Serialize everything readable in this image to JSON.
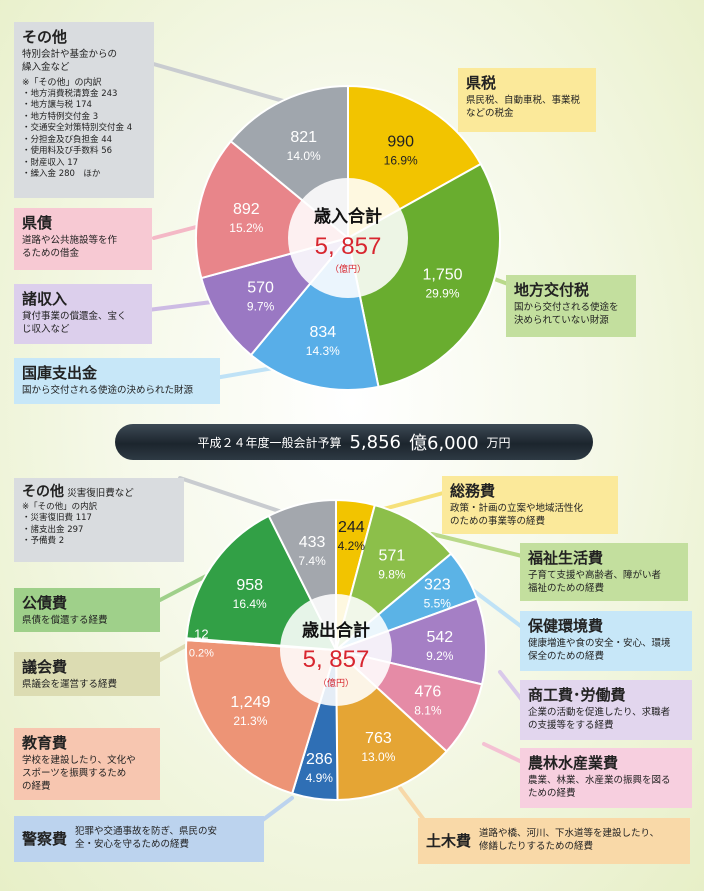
{
  "banner": {
    "prefix": "平成２４年度一般会計予算",
    "amount": "5,856",
    "unit1": "億6,000",
    "unit2": "万円"
  },
  "chart_data": [
    {
      "type": "pie",
      "title": "歳入合計",
      "total": "5, 857",
      "unit": "（億円）",
      "slices": [
        {
          "key": "kenzei",
          "value": 990,
          "value_label": "990",
          "pct": "16.9%",
          "color": "#f2c400"
        },
        {
          "key": "chihou_koufuzei",
          "value": 1750,
          "value_label": "1,750",
          "pct": "29.9%",
          "color": "#69ad2f"
        },
        {
          "key": "kokko",
          "value": 834,
          "value_label": "834",
          "pct": "14.3%",
          "color": "#58aee8"
        },
        {
          "key": "shoshunyu",
          "value": 570,
          "value_label": "570",
          "pct": "9.7%",
          "color": "#9a78c3"
        },
        {
          "key": "kensai",
          "value": 892,
          "value_label": "892",
          "pct": "15.2%",
          "color": "#e8858a"
        },
        {
          "key": "sonota",
          "value": 821,
          "value_label": "821",
          "pct": "14.0%",
          "color": "#a0a6ad"
        }
      ]
    },
    {
      "type": "pie",
      "title": "歳出合計",
      "total": "5, 857",
      "unit": "（億円）",
      "slices": [
        {
          "key": "soumu",
          "value": 244,
          "value_label": "244",
          "pct": "4.2%",
          "color": "#f2c400"
        },
        {
          "key": "fukushi",
          "value": 571,
          "value_label": "571",
          "pct": "9.8%",
          "color": "#8cbf4a"
        },
        {
          "key": "hoken",
          "value": 323,
          "value_label": "323",
          "pct": "5.5%",
          "color": "#5bb3e6"
        },
        {
          "key": "shoukou",
          "value": 542,
          "value_label": "542",
          "pct": "9.2%",
          "color": "#a57fc5"
        },
        {
          "key": "nourin",
          "value": 476,
          "value_label": "476",
          "pct": "8.1%",
          "color": "#e58ba6"
        },
        {
          "key": "doboku",
          "value": 763,
          "value_label": "763",
          "pct": "13.0%",
          "color": "#e5a534"
        },
        {
          "key": "keisatsu",
          "value": 286,
          "value_label": "286",
          "pct": "4.9%",
          "color": "#2f6fb5"
        },
        {
          "key": "kyouiku",
          "value": 1249,
          "value_label": "1,249",
          "pct": "21.3%",
          "color": "#ed9476"
        },
        {
          "key": "gikai",
          "value": 12,
          "value_label": "12",
          "pct": "0.2%",
          "color": "#c7c38a"
        },
        {
          "key": "kousai",
          "value": 958,
          "value_label": "958",
          "pct": "16.4%",
          "color": "#32a046"
        },
        {
          "key": "sonota",
          "value": 433,
          "value_label": "433",
          "pct": "7.4%",
          "color": "#a3a7ad"
        }
      ]
    }
  ],
  "revenue": {
    "sonota": {
      "title": "その他",
      "desc1": "特別会計や基金からの",
      "desc2": "繰入金など",
      "note_head": "※「その他」の内訳",
      "items": [
        "・地方消費税清算金 243",
        "・地方譲与税 174",
        "・地方特例交付金 3",
        "・交通安全対策特別交付金 4",
        "・分担金及び負担金 44",
        "・使用料及び手数料 56",
        "・財産収入 17",
        "・繰入金 280　ほか"
      ]
    },
    "kenzei": {
      "title": "県税",
      "desc1": "県民税、自動車税、事業税",
      "desc2": "などの税金"
    },
    "chihou": {
      "title": "地方交付税",
      "desc1": "国から交付される使途を",
      "desc2": "決められていない財源"
    },
    "kensai": {
      "title": "県債",
      "desc1": "道路や公共施設等を作",
      "desc2": "るための借金"
    },
    "shoshunyu": {
      "title": "諸収入",
      "desc1": "貸付事業の償還金、宝く",
      "desc2": "じ収入など"
    },
    "kokko": {
      "title": "国庫支出金",
      "desc1": "国から交付される使途の決められた財源"
    }
  },
  "expense": {
    "sonota": {
      "title": "その他",
      "sub": "災害復旧費など",
      "note_head": "※「その他」の内訳",
      "items": [
        "・災害復旧費 117",
        "・諸支出金 297",
        "・予備費 2"
      ]
    },
    "soumu": {
      "title": "総務費",
      "desc1": "政策・計画の立案や地域活性化",
      "desc2": "のための事業等の経費"
    },
    "fukushi": {
      "title": "福祉生活費",
      "desc1": "子育て支援や高齢者、障がい者",
      "desc2": "福祉のための経費"
    },
    "hoken": {
      "title": "保健環境費",
      "desc1": "健康増進や食の安全・安心、環境",
      "desc2": "保全のための経費"
    },
    "shoukou": {
      "title": "商工費･労働費",
      "desc1": "企業の活動を促進したり、求職者",
      "desc2": "の支援等をする経費"
    },
    "nourin": {
      "title": "農林水産業費",
      "desc1": "農業、林業、水産業の振興を図る",
      "desc2": "ための経費"
    },
    "doboku": {
      "title": "土木費",
      "desc1": "道路や橋、河川、下水道等を建設したり、",
      "desc2": "修繕したりするための経費"
    },
    "kousai": {
      "title": "公債費",
      "desc1": "県債を償還する経費"
    },
    "gikai": {
      "title": "議会費",
      "desc1": "県議会を運営する経費"
    },
    "kyouiku": {
      "title": "教育費",
      "desc1": "学校を建設したり、文化や",
      "desc2": "スポーツを振興するため",
      "desc3": "の経費"
    },
    "keisatsu": {
      "title": "警察費",
      "desc1": "犯罪や交通事故を防ぎ、県民の安",
      "desc2": "全・安心を守るための経費"
    }
  }
}
